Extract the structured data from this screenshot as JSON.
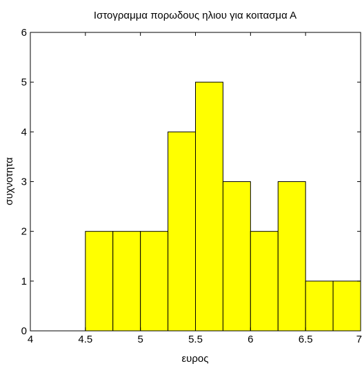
{
  "chart_data": {
    "type": "bar",
    "title": "Ιστογραμμα πορωδους ηλιου για κοιτασμα Α",
    "xlabel": "ευρος",
    "ylabel": "συχνοτητα",
    "xlim": [
      4,
      7
    ],
    "ylim": [
      0,
      6
    ],
    "x_ticks": [
      "4",
      "4.5",
      "5",
      "5.5",
      "6",
      "6.5",
      "7"
    ],
    "y_ticks": [
      "0",
      "1",
      "2",
      "3",
      "4",
      "5",
      "6"
    ],
    "bins": [
      {
        "x0": 4.5,
        "x1": 4.75,
        "value": 2
      },
      {
        "x0": 4.75,
        "x1": 5.0,
        "value": 2
      },
      {
        "x0": 5.0,
        "x1": 5.25,
        "value": 2
      },
      {
        "x0": 5.25,
        "x1": 5.5,
        "value": 4
      },
      {
        "x0": 5.5,
        "x1": 5.75,
        "value": 5
      },
      {
        "x0": 5.75,
        "x1": 6.0,
        "value": 3
      },
      {
        "x0": 6.0,
        "x1": 6.25,
        "value": 2
      },
      {
        "x0": 6.25,
        "x1": 6.5,
        "value": 3
      },
      {
        "x0": 6.5,
        "x1": 6.75,
        "value": 1
      },
      {
        "x0": 6.75,
        "x1": 7.0,
        "value": 1
      }
    ],
    "bar_color": "#ffff00",
    "edge_color": "#000000",
    "grid": false
  }
}
